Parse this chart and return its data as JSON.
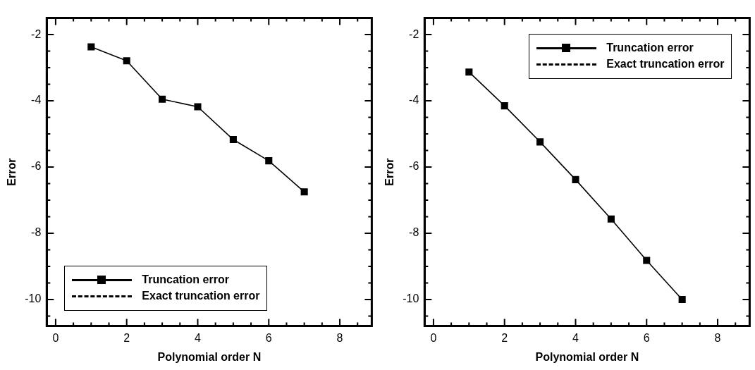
{
  "chart_data": [
    {
      "type": "line",
      "xlabel": "Polynomial order N",
      "ylabel": "Error",
      "xlim": [
        -0.25,
        8.9
      ],
      "ylim": [
        -10.8,
        -1.5
      ],
      "xticks": [
        0,
        {
          "value": 0.5,
          "label": null
        },
        {
          "value": 1,
          "label": null
        },
        {
          "value": 1.5,
          "label": null
        },
        2,
        {
          "value": 2.5,
          "label": null
        },
        {
          "value": 3,
          "label": null
        },
        {
          "value": 3.5,
          "label": null
        },
        4,
        {
          "value": 4.5,
          "label": null
        },
        {
          "value": 5,
          "label": null
        },
        {
          "value": 5.5,
          "label": null
        },
        6,
        {
          "value": 6.5,
          "label": null
        },
        {
          "value": 7,
          "label": null
        },
        {
          "value": 7.5,
          "label": null
        },
        8,
        {
          "value": 8.5,
          "label": null
        }
      ],
      "yticks": [
        {
          "value": -10.5,
          "label": null
        },
        -10,
        {
          "value": -9.5,
          "label": null
        },
        {
          "value": -9,
          "label": null
        },
        {
          "value": -8.5,
          "label": null
        },
        -8,
        {
          "value": -7.5,
          "label": null
        },
        {
          "value": -7,
          "label": null
        },
        {
          "value": -6.5,
          "label": null
        },
        -6,
        {
          "value": -5.5,
          "label": null
        },
        {
          "value": -5,
          "label": null
        },
        {
          "value": -4.5,
          "label": null
        },
        -4,
        {
          "value": -3.5,
          "label": null
        },
        {
          "value": -3,
          "label": null
        },
        {
          "value": -2.5,
          "label": null
        },
        -2
      ],
      "grid": false,
      "legend": "bottom left",
      "x": [
        1,
        2,
        3,
        4,
        5,
        6,
        7
      ],
      "series": [
        {
          "name": "Truncation error",
          "color": "#000000",
          "marker": "square",
          "line_style": "solid",
          "values": [
            -2.37,
            -2.79,
            -3.95,
            -4.18,
            -5.17,
            -5.81,
            -6.75
          ]
        },
        {
          "name": "Exact truncation error",
          "color": "#000000",
          "marker": "none",
          "line_style": "dashed",
          "values": [
            null,
            null,
            null,
            null,
            null,
            null,
            null
          ]
        }
      ]
    },
    {
      "type": "line",
      "xlabel": "Polynomial order N",
      "ylabel": "Error",
      "xlim": [
        -0.25,
        8.9
      ],
      "ylim": [
        -10.8,
        -1.5
      ],
      "xticks": [
        0,
        {
          "value": 0.5,
          "label": null
        },
        {
          "value": 1,
          "label": null
        },
        {
          "value": 1.5,
          "label": null
        },
        2,
        {
          "value": 2.5,
          "label": null
        },
        {
          "value": 3,
          "label": null
        },
        {
          "value": 3.5,
          "label": null
        },
        4,
        {
          "value": 4.5,
          "label": null
        },
        {
          "value": 5,
          "label": null
        },
        {
          "value": 5.5,
          "label": null
        },
        6,
        {
          "value": 6.5,
          "label": null
        },
        {
          "value": 7,
          "label": null
        },
        {
          "value": 7.5,
          "label": null
        },
        8,
        {
          "value": 8.5,
          "label": null
        }
      ],
      "yticks": [
        {
          "value": -10.5,
          "label": null
        },
        -10,
        {
          "value": -9.5,
          "label": null
        },
        {
          "value": -9,
          "label": null
        },
        {
          "value": -8.5,
          "label": null
        },
        -8,
        {
          "value": -7.5,
          "label": null
        },
        {
          "value": -7,
          "label": null
        },
        {
          "value": -6.5,
          "label": null
        },
        -6,
        {
          "value": -5.5,
          "label": null
        },
        {
          "value": -5,
          "label": null
        },
        {
          "value": -4.5,
          "label": null
        },
        -4,
        {
          "value": -3.5,
          "label": null
        },
        {
          "value": -3,
          "label": null
        },
        {
          "value": -2.5,
          "label": null
        },
        -2
      ],
      "grid": false,
      "legend": "top right",
      "x": [
        1,
        2,
        3,
        4,
        5,
        6,
        7
      ],
      "series": [
        {
          "name": "Truncation error",
          "color": "#000000",
          "marker": "square",
          "line_style": "solid",
          "values": [
            -3.13,
            -4.15,
            -5.24,
            -6.38,
            -7.57,
            -8.82,
            -10.0
          ]
        },
        {
          "name": "Exact truncation error",
          "color": "#000000",
          "marker": "none",
          "line_style": "dashed",
          "values": [
            null,
            null,
            null,
            null,
            null,
            null,
            null
          ]
        }
      ]
    }
  ]
}
